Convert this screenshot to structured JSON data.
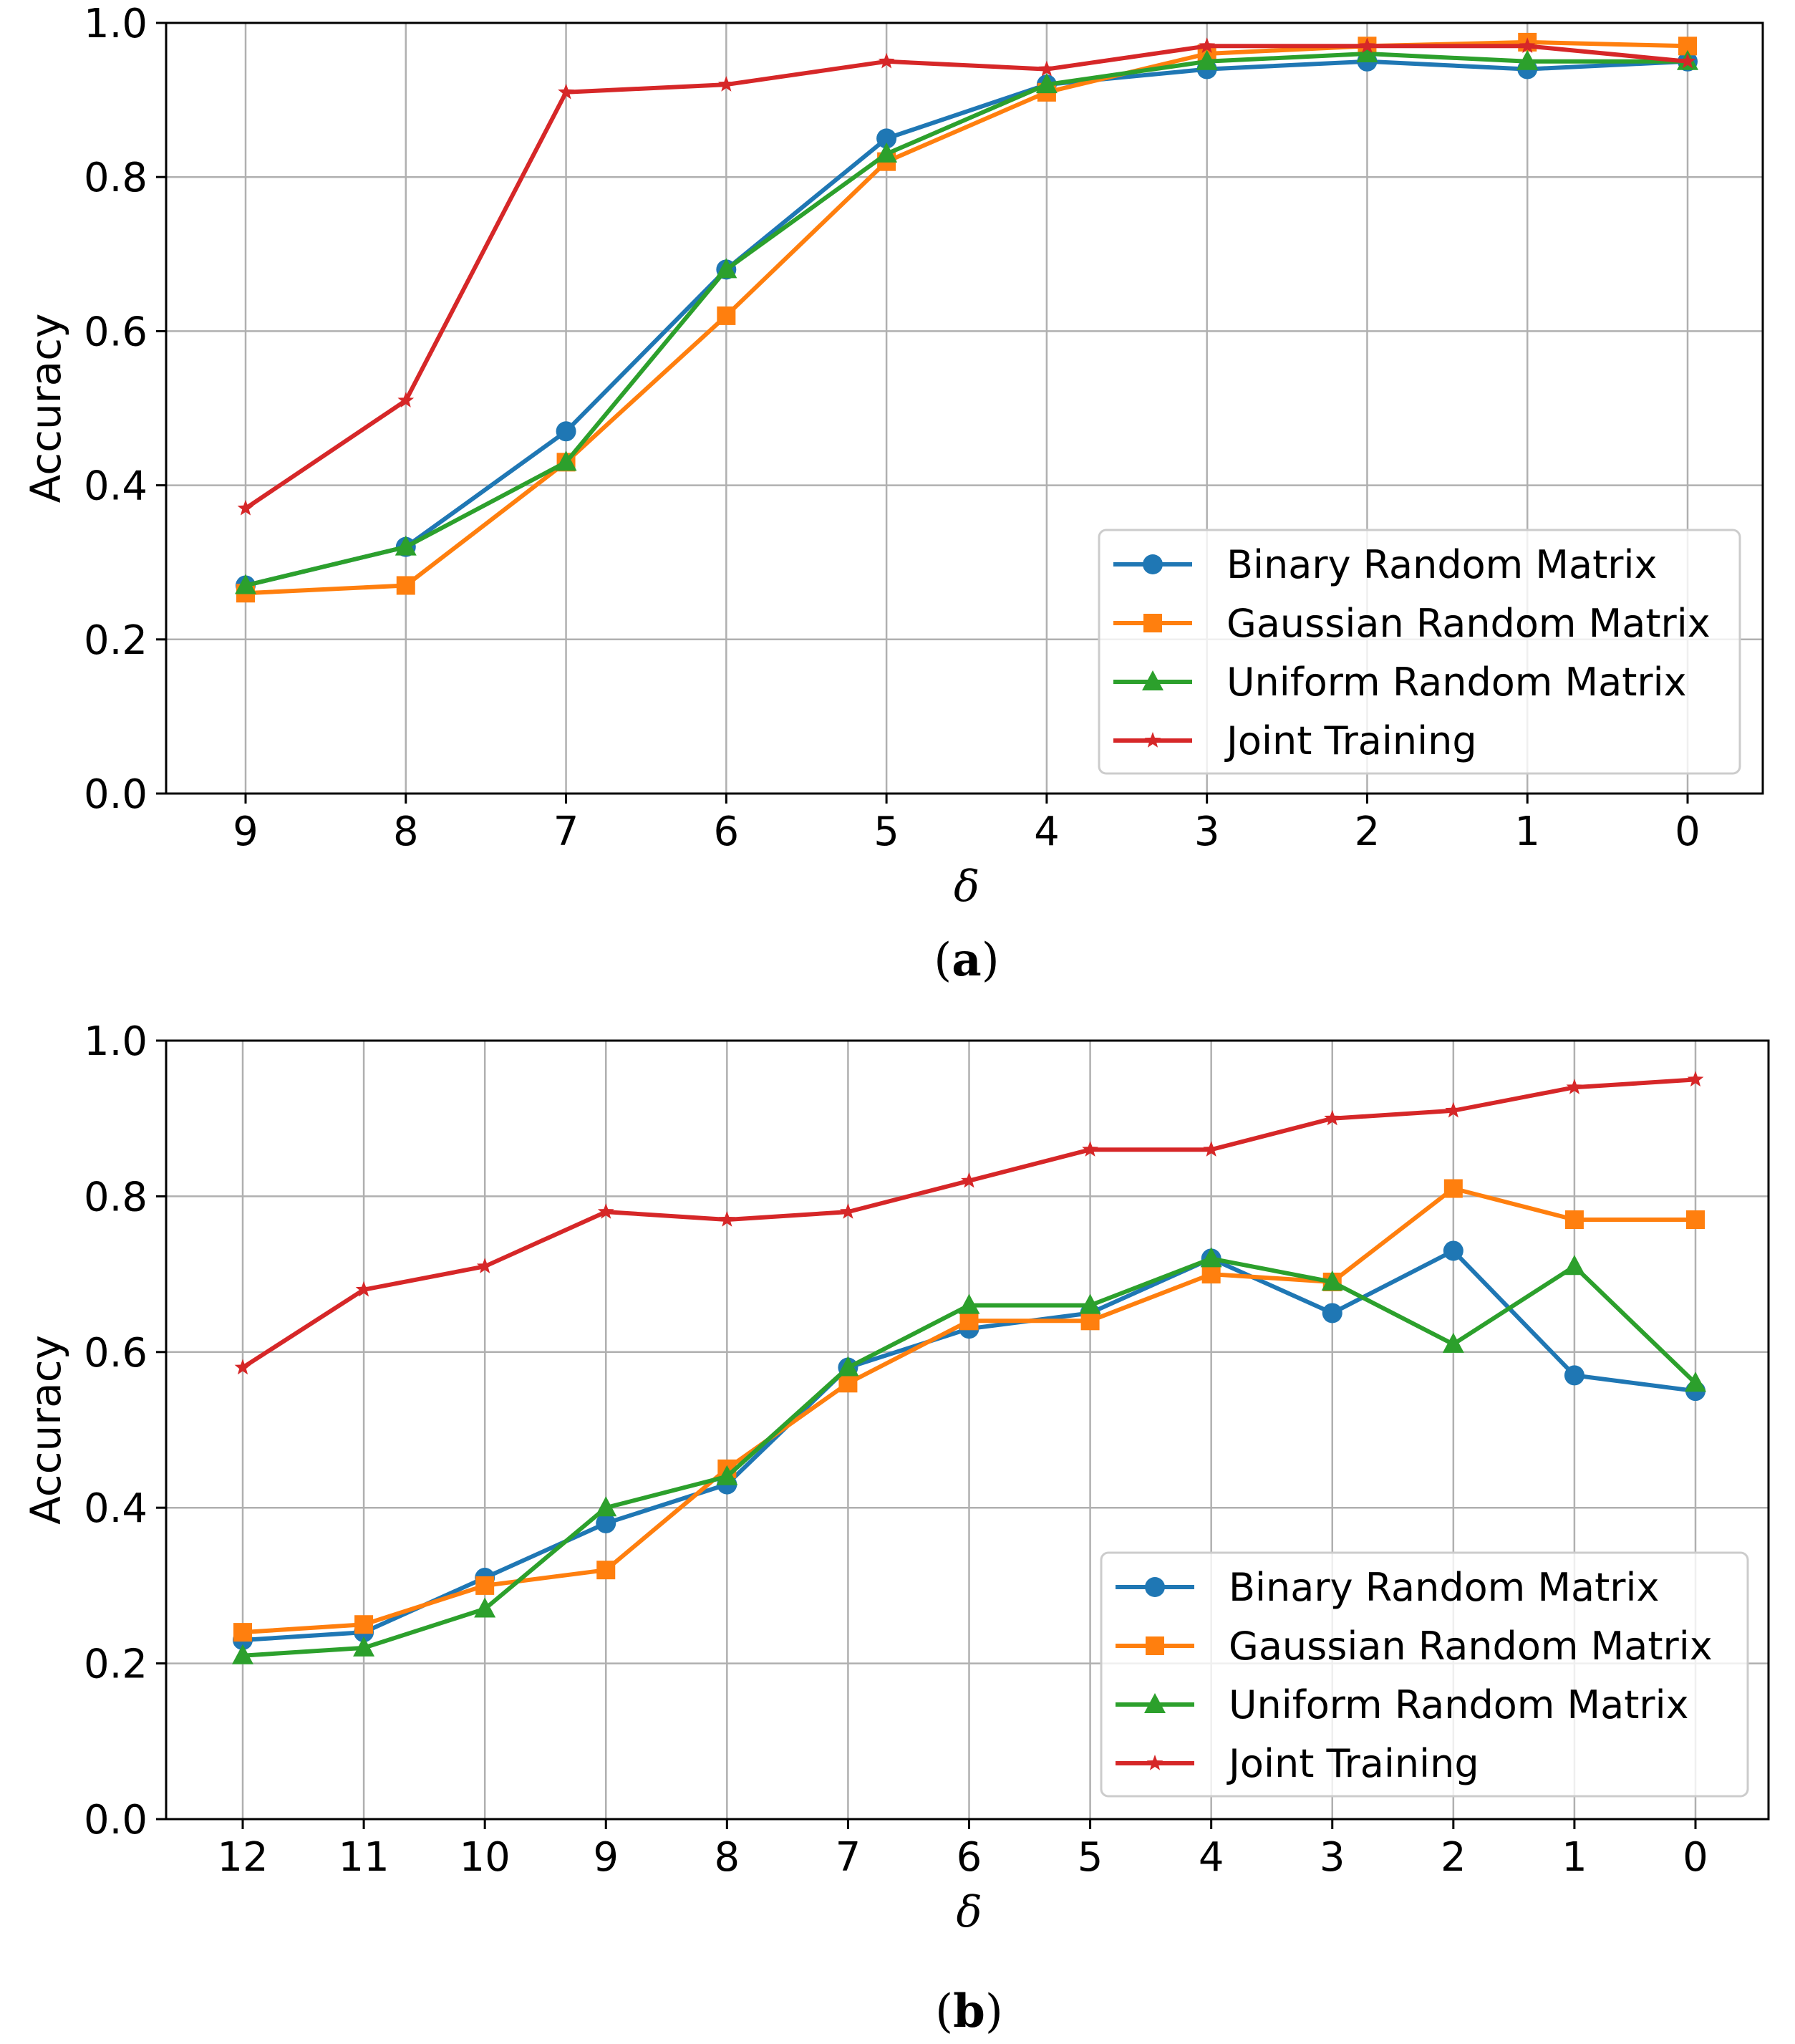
{
  "chart_data": [
    {
      "type": "line",
      "caption": "a",
      "xlabel": "δ",
      "ylabel": "Accuracy",
      "ylim": [
        0,
        1
      ],
      "grid": true,
      "legend_position": "lower-right",
      "x": [
        9,
        8,
        7,
        6,
        5,
        4,
        3,
        2,
        1,
        0
      ],
      "x_ticks": [
        "9",
        "8",
        "7",
        "6",
        "5",
        "4",
        "3",
        "2",
        "1",
        "0"
      ],
      "y_ticks": [
        "0.0",
        "0.2",
        "0.4",
        "0.6",
        "0.8",
        "1.0"
      ],
      "series": [
        {
          "name": "Binary Random Matrix",
          "color": "#1f77b4",
          "marker": "circle",
          "values": [
            0.27,
            0.32,
            0.47,
            0.68,
            0.85,
            0.92,
            0.94,
            0.95,
            0.94,
            0.95
          ]
        },
        {
          "name": "Gaussian Random Matrix",
          "color": "#ff7f0e",
          "marker": "square",
          "values": [
            0.26,
            0.27,
            0.43,
            0.62,
            0.82,
            0.91,
            0.96,
            0.97,
            0.975,
            0.97
          ]
        },
        {
          "name": "Uniform Random Matrix",
          "color": "#2ca02c",
          "marker": "triangle",
          "values": [
            0.27,
            0.32,
            0.43,
            0.68,
            0.83,
            0.92,
            0.95,
            0.96,
            0.95,
            0.95
          ]
        },
        {
          "name": "Joint Training",
          "color": "#d62728",
          "marker": "star",
          "values": [
            0.37,
            0.51,
            0.91,
            0.92,
            0.95,
            0.94,
            0.97,
            0.97,
            0.97,
            0.95
          ]
        }
      ]
    },
    {
      "type": "line",
      "caption": "b",
      "xlabel": "δ",
      "ylabel": "Accuracy",
      "ylim": [
        0,
        1
      ],
      "grid": true,
      "legend_position": "lower-right",
      "x": [
        12,
        11,
        10,
        9,
        8,
        7,
        6,
        5,
        4,
        3,
        2,
        1,
        0
      ],
      "x_ticks": [
        "12",
        "11",
        "10",
        "9",
        "8",
        "7",
        "6",
        "5",
        "4",
        "3",
        "2",
        "1",
        "0"
      ],
      "y_ticks": [
        "0.0",
        "0.2",
        "0.4",
        "0.6",
        "0.8",
        "1.0"
      ],
      "series": [
        {
          "name": "Binary Random Matrix",
          "color": "#1f77b4",
          "marker": "circle",
          "values": [
            0.23,
            0.24,
            0.31,
            0.38,
            0.43,
            0.58,
            0.63,
            0.65,
            0.72,
            0.65,
            0.73,
            0.57,
            0.55
          ]
        },
        {
          "name": "Gaussian Random Matrix",
          "color": "#ff7f0e",
          "marker": "square",
          "values": [
            0.24,
            0.25,
            0.3,
            0.32,
            0.45,
            0.56,
            0.64,
            0.64,
            0.7,
            0.69,
            0.81,
            0.77,
            0.77
          ]
        },
        {
          "name": "Uniform Random Matrix",
          "color": "#2ca02c",
          "marker": "triangle",
          "values": [
            0.21,
            0.22,
            0.27,
            0.4,
            0.44,
            0.58,
            0.66,
            0.66,
            0.72,
            0.69,
            0.61,
            0.71,
            0.56
          ]
        },
        {
          "name": "Joint Training",
          "color": "#d62728",
          "marker": "star",
          "values": [
            0.58,
            0.68,
            0.71,
            0.78,
            0.77,
            0.78,
            0.82,
            0.86,
            0.86,
            0.9,
            0.91,
            0.94,
            0.95
          ]
        }
      ]
    }
  ]
}
